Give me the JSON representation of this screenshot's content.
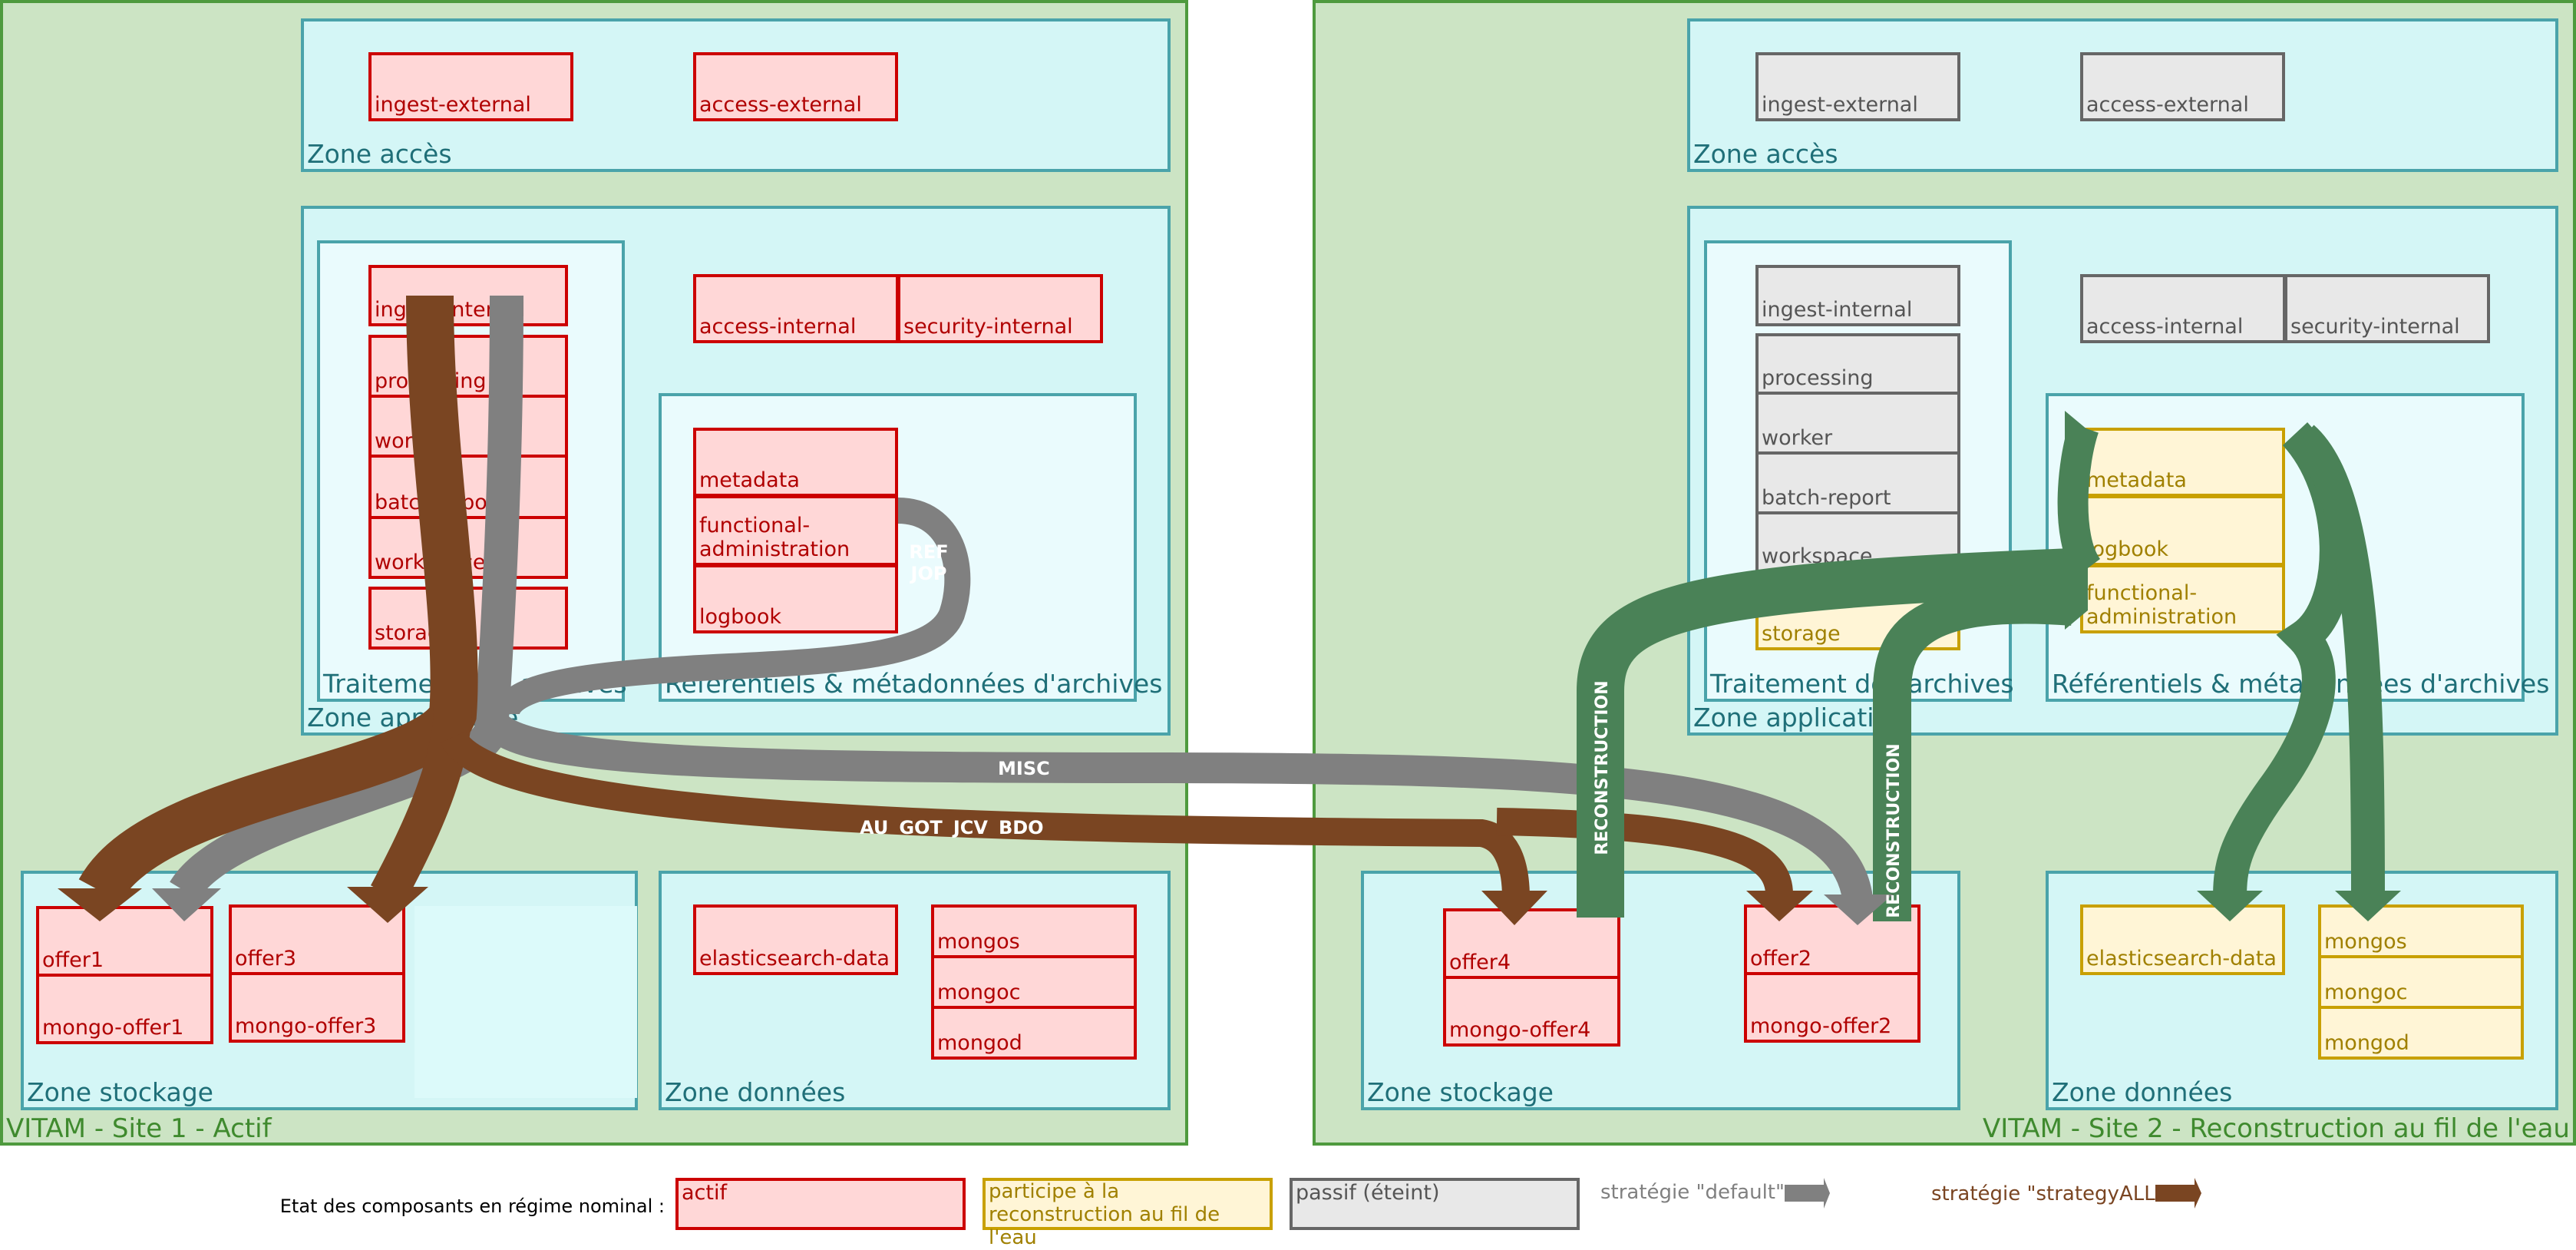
{
  "colors": {
    "active": "#ffd7d7",
    "reconstruction": "#fff5d6",
    "passive": "#e8e8e8",
    "default_strategy": "#808080",
    "strategyall": "#7a4522",
    "reconstruction_arrow": "#4a8257"
  },
  "site1": {
    "label": "VITAM - Site 1 - Actif",
    "zone_acces": "Zone accès",
    "ingest_external": "ingest-external",
    "access_external": "access-external",
    "zone_applicative": "Zone applicative",
    "traitement": "Traitement des archives",
    "ingest_internal": "ingest-internal",
    "processing": "processing",
    "worker": "worker",
    "batch_report": "batch-report",
    "workspace": "workspace",
    "storage": "storage",
    "access_internal": "access-internal",
    "security_internal": "security-internal",
    "referentiels": "Référentiels & métadonnées d'archives",
    "metadata": "metadata",
    "functional_administration": "functional-administration",
    "logbook": "logbook",
    "zone_stockage": "Zone stockage",
    "offer1": "offer1",
    "mongo_offer1": "mongo-offer1",
    "offer3": "offer3",
    "mongo_offer3": "mongo-offer3",
    "zone_donnees": "Zone données",
    "elasticsearch_data": "elasticsearch-data",
    "mongos": "mongos",
    "mongoc": "mongoc",
    "mongod": "mongod"
  },
  "site2": {
    "label": "VITAM - Site 2 - Reconstruction au fil de l'eau",
    "zone_acces": "Zone accès",
    "ingest_external": "ingest-external",
    "access_external": "access-external",
    "zone_applicative": "Zone applicative",
    "traitement": "Traitement des archives",
    "ingest_internal": "ingest-internal",
    "processing": "processing",
    "worker": "worker",
    "batch_report": "batch-report",
    "workspace": "workspace",
    "storage": "storage",
    "access_internal": "access-internal",
    "security_internal": "security-internal",
    "referentiels": "Référentiels & métadonnées d'archives",
    "metadata": "metadata",
    "logbook": "logbook",
    "functional_administration": "functional-administration",
    "zone_stockage": "Zone stockage",
    "offer4": "offer4",
    "mongo_offer4": "mongo-offer4",
    "offer2": "offer2",
    "mongo_offer2": "mongo-offer2",
    "zone_donnees": "Zone données",
    "elasticsearch_data": "elasticsearch-data",
    "mongos": "mongos",
    "mongoc": "mongoc",
    "mongod": "mongod"
  },
  "flows": {
    "strategyall_label": "AU\nGOT\nJCV\nBDO",
    "misc_label": "MISC",
    "ref_label": "REF\nJOP",
    "reconstruction_label": "RECONSTRUCTION"
  },
  "legend": {
    "title": "Etat des composants en régime nominal :",
    "active": "actif",
    "reconstruction": "participe à la reconstruction au fil de l'eau",
    "passive": "passif (éteint)",
    "default_strategy": "stratégie \"default\"",
    "strategyall": "stratégie \"strategyALL\""
  }
}
